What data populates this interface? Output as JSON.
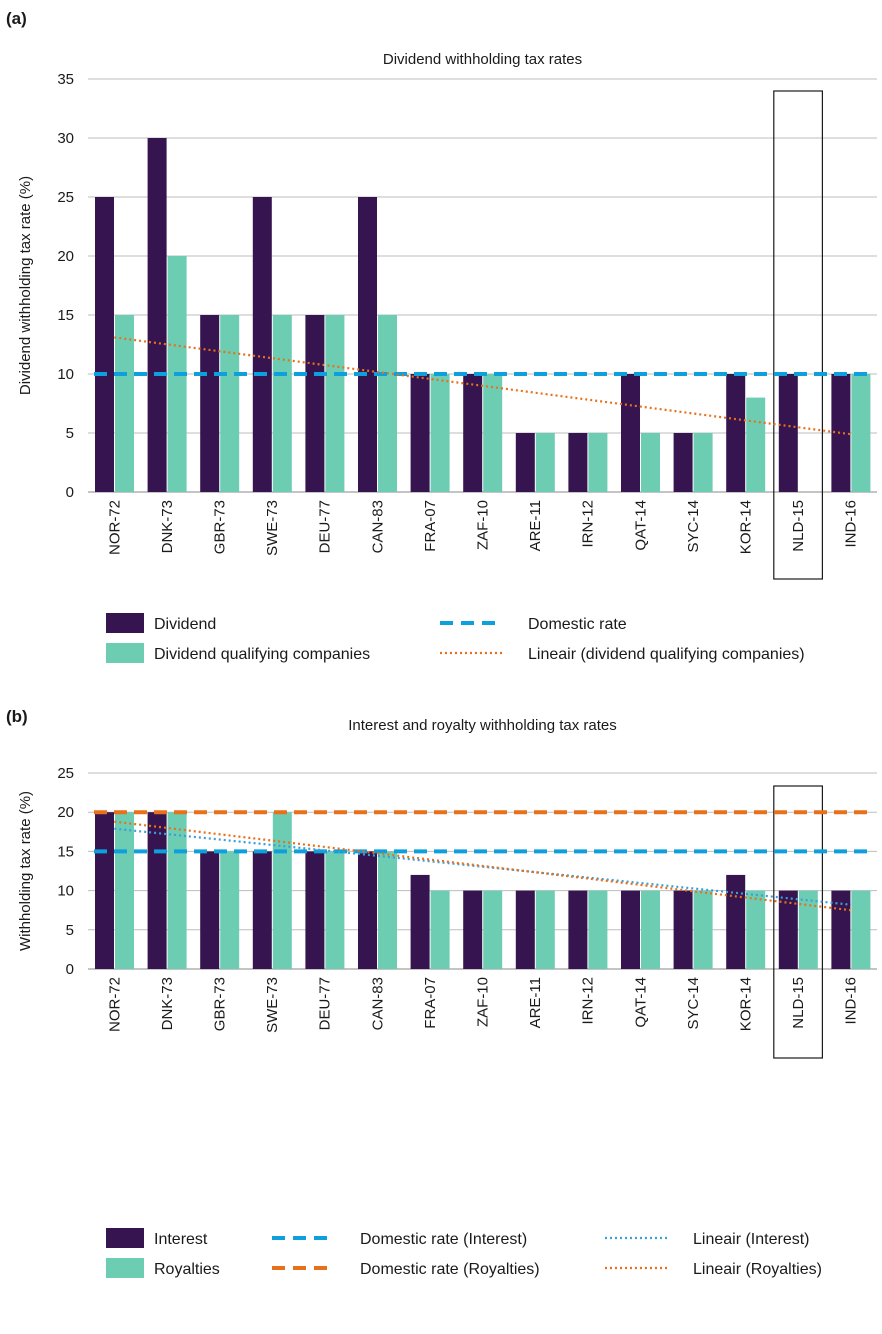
{
  "chart_data": [
    {
      "panel_label": "(a)",
      "type": "bar",
      "title": "Dividend withholding tax rates",
      "xlabel": "",
      "ylabel": "Dividend withholding tax rate (%)",
      "ylim": [
        0,
        35
      ],
      "yticks": [
        "0",
        "5",
        "10",
        "15",
        "20",
        "25",
        "30",
        "35"
      ],
      "grid": true,
      "highlighted_category": "NLD-15",
      "categories": [
        "NOR-72",
        "DNK-73",
        "GBR-73",
        "SWE-73",
        "DEU-77",
        "CAN-83",
        "FRA-07",
        "ZAF-10",
        "ARE-11",
        "IRN-12",
        "QAT-14",
        "SYC-14",
        "KOR-14",
        "NLD-15",
        "IND-16"
      ],
      "series": [
        {
          "name": "Dividend",
          "kind": "bar",
          "color": "#35144f",
          "values": [
            25,
            30,
            15,
            25,
            15,
            25,
            10,
            10,
            5,
            5,
            10,
            5,
            10,
            10,
            10
          ]
        },
        {
          "name": "Dividend qualifying companies",
          "kind": "bar",
          "color": "#6ccdb3",
          "values": [
            15,
            20,
            15,
            15,
            15,
            15,
            10,
            10,
            5,
            5,
            5,
            5,
            8,
            0,
            10
          ]
        },
        {
          "name": "Domestic rate",
          "kind": "dashed",
          "color": "#0ea0dc",
          "value": 10
        },
        {
          "name": "Lineair (dividend qualifying companies)",
          "kind": "dotted",
          "color": "#e8701a",
          "start": 13.1,
          "end": 4.9
        }
      ],
      "legend_position": "bottom"
    },
    {
      "panel_label": "(b)",
      "type": "bar",
      "title": "Interest and royalty withholding tax rates",
      "xlabel": "",
      "ylabel": "Withholding tax rate (%)",
      "ylim": [
        0,
        25
      ],
      "yticks": [
        "0",
        "5",
        "10",
        "15",
        "20",
        "25"
      ],
      "grid": true,
      "highlighted_category": "NLD-15",
      "categories": [
        "NOR-72",
        "DNK-73",
        "GBR-73",
        "SWE-73",
        "DEU-77",
        "CAN-83",
        "FRA-07",
        "ZAF-10",
        "ARE-11",
        "IRN-12",
        "QAT-14",
        "SYC-14",
        "KOR-14",
        "NLD-15",
        "IND-16"
      ],
      "series": [
        {
          "name": "Interest",
          "kind": "bar",
          "color": "#35144f",
          "values": [
            20,
            20,
            15,
            15,
            15,
            15,
            12,
            10,
            10,
            10,
            10,
            10,
            12,
            10,
            10
          ]
        },
        {
          "name": "Royalties",
          "kind": "bar",
          "color": "#6ccdb3",
          "values": [
            20,
            20,
            15,
            20,
            15,
            15,
            10,
            10,
            10,
            10,
            10,
            10,
            10,
            10,
            10
          ]
        },
        {
          "name": "Domestic rate (Interest)",
          "kind": "dashed",
          "color": "#0ea0dc",
          "value": 15
        },
        {
          "name": "Domestic rate (Royalties)",
          "kind": "dashed",
          "color": "#e8701a",
          "value": 20
        },
        {
          "name": "Lineair (Interest)",
          "kind": "dotted",
          "color": "#3a9fd9",
          "start": 17.9,
          "end": 8.2
        },
        {
          "name": "Lineair (Royalties)",
          "kind": "dotted",
          "color": "#e8701a",
          "start": 18.8,
          "end": 7.5
        }
      ],
      "legend_position": "bottom"
    }
  ]
}
